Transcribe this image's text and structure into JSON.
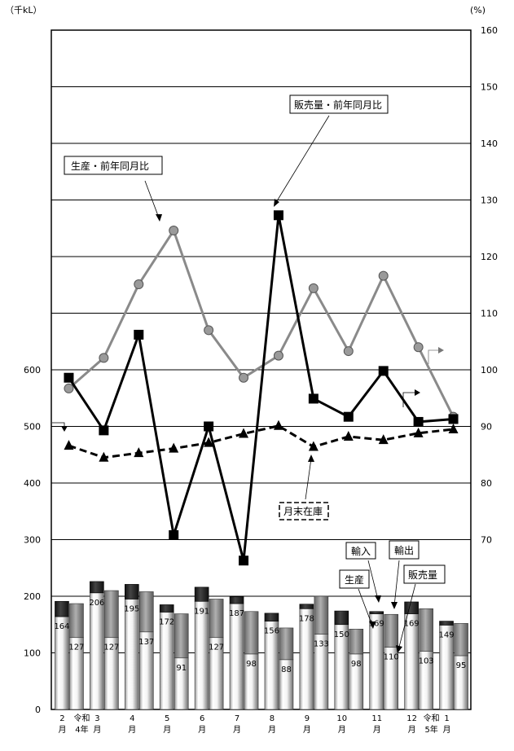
{
  "chart_data": {
    "type": "bar+line",
    "left_axis": {
      "unit": "（千kL）",
      "ticks": [
        "0",
        "100",
        "200",
        "300",
        "400",
        "500",
        "600"
      ],
      "range": [
        0,
        1200
      ]
    },
    "right_axis": {
      "unit": "(%)",
      "ticks": [
        "70",
        "80",
        "90",
        "100",
        "110",
        "120",
        "130",
        "140",
        "150",
        "160"
      ],
      "range": [
        40,
        160
      ]
    },
    "categories": [
      {
        "month": "2",
        "unit": "月",
        "era": "令和",
        "era_year": "4年"
      },
      {
        "month": "3",
        "unit": "月"
      },
      {
        "month": "4",
        "unit": "月"
      },
      {
        "month": "5",
        "unit": "月"
      },
      {
        "month": "6",
        "unit": "月"
      },
      {
        "month": "7",
        "unit": "月"
      },
      {
        "month": "8",
        "unit": "月"
      },
      {
        "month": "9",
        "unit": "月"
      },
      {
        "month": "10",
        "unit": "月"
      },
      {
        "month": "11",
        "unit": "月"
      },
      {
        "month": "12",
        "unit": "月",
        "era": "令和",
        "era_year": "5年"
      },
      {
        "month": "1",
        "unit": "月"
      }
    ],
    "bar_series": [
      {
        "name": "生産",
        "values": [
          164,
          206,
          195,
          172,
          191,
          187,
          156,
          178,
          150,
          169,
          169,
          149
        ],
        "stacked_on_top": [
          27,
          20,
          26,
          13,
          25,
          12,
          14,
          8,
          24,
          4,
          21,
          7
        ]
      },
      {
        "name": "輸入",
        "values": [
          127,
          127,
          137,
          91,
          127,
          98,
          88,
          133,
          98,
          110,
          103,
          95
        ],
        "stacked_on_top": [
          60,
          83,
          71,
          78,
          68,
          75,
          56,
          67,
          44,
          58,
          75,
          57
        ]
      }
    ],
    "line_series": [
      {
        "name": "生産・前年同月比",
        "values": [
          96.7,
          102.1,
          115.1,
          124.6,
          107.0,
          98.6,
          102.5,
          114.4,
          103.3,
          116.6,
          104.0,
          91.7
        ]
      },
      {
        "name": "販売量・前年同月比",
        "values": [
          98.6,
          89.3,
          106.2,
          70.8,
          90.0,
          66.3,
          127.3,
          94.9,
          91.7,
          99.8,
          90.8,
          91.3
        ]
      },
      {
        "name": "月末在庫",
        "values": [
          466,
          445,
          453,
          461,
          471,
          487,
          501,
          464,
          482,
          476,
          488,
          495
        ]
      }
    ],
    "annotations": {
      "production_ratio": "生産・前年同月比",
      "sales_ratio": "販売量・前年同月比",
      "inventory": "月末在庫",
      "import": "輸入",
      "export": "輸出",
      "production": "生産",
      "sales": "販売量"
    }
  }
}
